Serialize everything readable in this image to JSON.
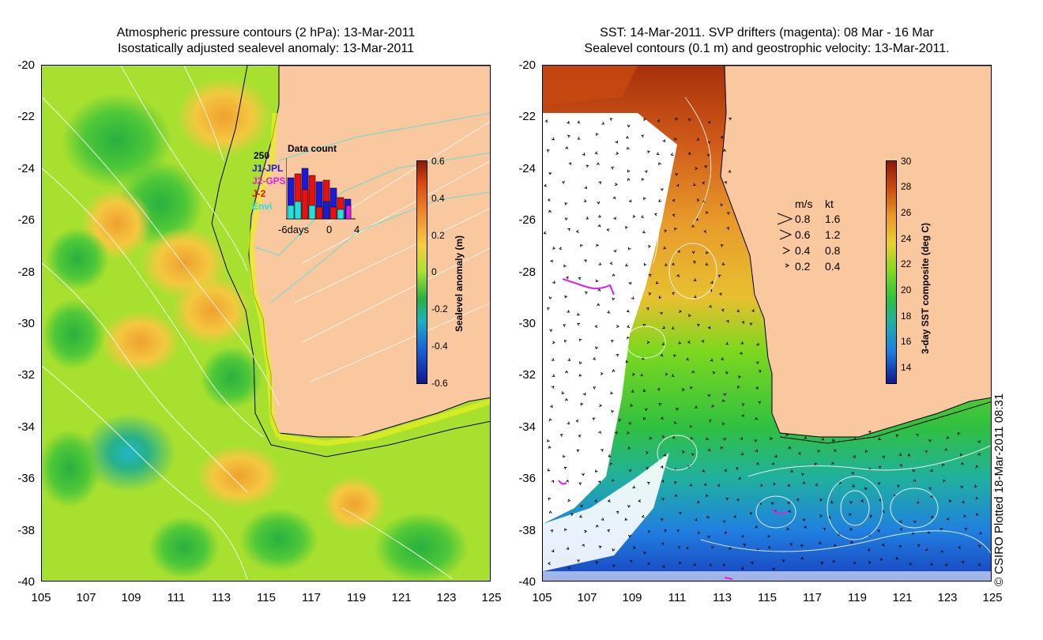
{
  "left_panel": {
    "title_line1": "Atmospheric pressure contours (2 hPa): 13-Mar-2011",
    "title_line2": "Isostatically adjusted sealevel anomaly: 13-Mar-2011",
    "y_ticks": [
      "-20",
      "-22",
      "-24",
      "-26",
      "-28",
      "-30",
      "-32",
      "-34",
      "-36",
      "-38",
      "-40"
    ],
    "x_ticks": [
      "105",
      "107",
      "109",
      "111",
      "113",
      "115",
      "117",
      "119",
      "121",
      "123",
      "125"
    ],
    "colorbar": {
      "ticks": [
        "0.6",
        "0.4",
        "0.2",
        "0",
        "-0.2",
        "-0.4",
        "-0.6"
      ],
      "title": "Sealevel anomaly (m)"
    },
    "inset": {
      "max_label": "250",
      "title": "Data count",
      "missions": [
        "J1-JPL",
        "J2-GPS",
        "J-2",
        "Envi"
      ],
      "mission_colors": [
        "#1a1ad8",
        "#e020e0",
        "#e81010",
        "#20e0e0"
      ],
      "x_labels": [
        "-6days",
        "0",
        "4"
      ]
    }
  },
  "right_panel": {
    "title_line1": "SST: 14-Mar-2011. SVP drifters (magenta): 08 Mar - 16 Mar",
    "title_line2": "Sealevel contours (0.1 m) and geostrophic velocity: 13-Mar-2011.",
    "y_ticks": [
      "-20",
      "-22",
      "-24",
      "-26",
      "-28",
      "-30",
      "-32",
      "-34",
      "-36",
      "-38",
      "-40"
    ],
    "x_ticks": [
      "105",
      "107",
      "109",
      "111",
      "113",
      "115",
      "117",
      "119",
      "121",
      "123",
      "125"
    ],
    "colorbar": {
      "ticks": [
        "30",
        "28",
        "26",
        "24",
        "22",
        "20",
        "18",
        "16",
        "14"
      ],
      "title": "3-day SST composite (deg C)"
    },
    "velocity_legend": {
      "header_ms": "m/s",
      "header_kt": "kt",
      "rows": [
        {
          "ms": "0.8",
          "kt": "1.6"
        },
        {
          "ms": "0.6",
          "kt": "1.2"
        },
        {
          "ms": "0.4",
          "kt": "0.8"
        },
        {
          "ms": "0.2",
          "kt": "0.4"
        }
      ]
    }
  },
  "copyright": "© CSIRO Plotted 18-Mar-2011 08:31",
  "colors": {
    "land": "#f9c89e",
    "sea_warm": "#e89a2a",
    "sea_green": "#7ed81e"
  }
}
